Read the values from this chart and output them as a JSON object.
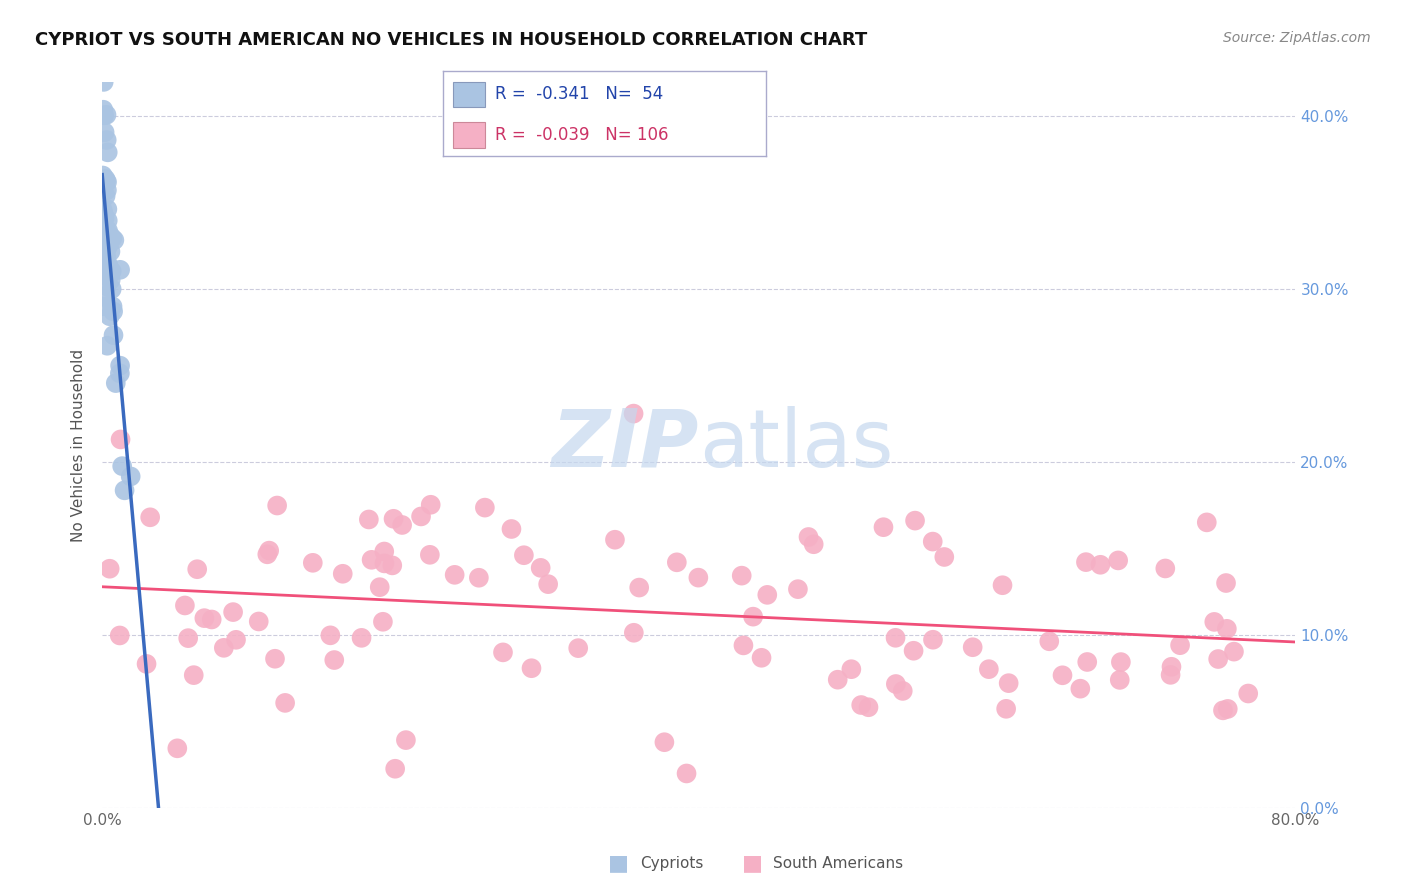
{
  "title": "CYPRIOT VS SOUTH AMERICAN NO VEHICLES IN HOUSEHOLD CORRELATION CHART",
  "source": "Source: ZipAtlas.com",
  "ylabel": "No Vehicles in Household",
  "ytick_vals": [
    0,
    10,
    20,
    30,
    40
  ],
  "xlim": [
    0,
    80
  ],
  "ylim": [
    0,
    42
  ],
  "legend_r_cypriot": "-0.341",
  "legend_n_cypriot": "54",
  "legend_r_south": "-0.039",
  "legend_n_south": "106",
  "cypriot_color": "#aac4e2",
  "south_american_color": "#f5b0c5",
  "cypriot_line_color": "#3a6abf",
  "south_american_line_color": "#f0507a",
  "background_color": "#ffffff",
  "grid_color": "#ccccdd",
  "watermark_color": "#c5d8ef",
  "right_axis_color": "#6699dd"
}
